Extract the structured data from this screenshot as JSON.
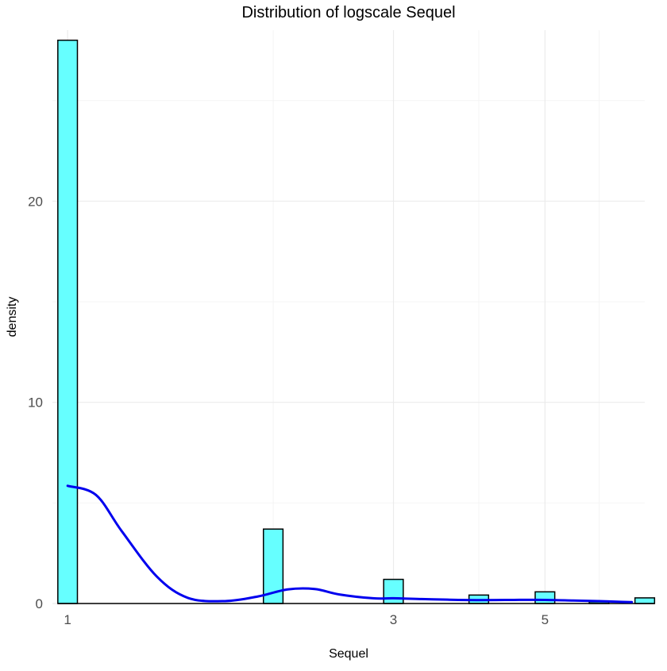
{
  "chart_data": {
    "type": "histogram",
    "title": "Distribution of logscale Sequel",
    "xlabel": "Sequel",
    "ylabel": "density",
    "x_scale": "log",
    "xlim": [
      0.95,
      7.0
    ],
    "ylim": [
      0,
      28.5
    ],
    "x_ticks": [
      1,
      3,
      5
    ],
    "x_minor_ticks": [
      2,
      4,
      6
    ],
    "y_ticks": [
      0,
      10,
      20
    ],
    "y_minor_ticks": [
      5,
      15,
      25
    ],
    "grid": true,
    "bars": [
      {
        "x": 1,
        "density": 28.0
      },
      {
        "x": 2,
        "density": 3.7
      },
      {
        "x": 3,
        "density": 1.2
      },
      {
        "x": 4,
        "density": 0.42
      },
      {
        "x": 5,
        "density": 0.58
      },
      {
        "x": 6,
        "density": 0.08
      },
      {
        "x": 7,
        "density": 0.28
      }
    ],
    "density_curve": {
      "x": [
        1,
        1.1,
        1.2,
        1.35,
        1.5,
        1.7,
        1.9,
        2.1,
        2.3,
        2.5,
        2.8,
        3.0,
        3.3,
        3.6,
        4.0,
        4.5,
        5.0,
        5.5,
        6.0,
        6.5,
        6.7
      ],
      "y": [
        5.85,
        5.4,
        3.6,
        1.35,
        0.28,
        0.12,
        0.35,
        0.7,
        0.72,
        0.45,
        0.26,
        0.26,
        0.22,
        0.19,
        0.17,
        0.18,
        0.18,
        0.15,
        0.12,
        0.08,
        0.07
      ]
    },
    "colors": {
      "bar_fill": "#66ffff",
      "bar_stroke": "#000000",
      "curve": "#0000ee",
      "background": "#ffffff"
    }
  }
}
